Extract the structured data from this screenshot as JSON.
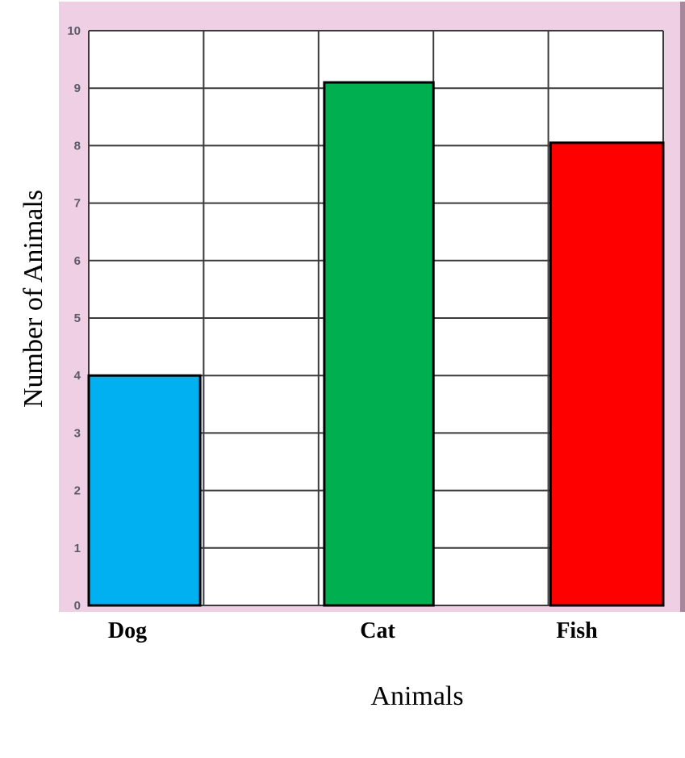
{
  "chart_data": {
    "type": "bar",
    "title": "",
    "xlabel": "Animals",
    "ylabel": "Number of Animals",
    "categories": [
      "Dog",
      "Cat",
      "Fish"
    ],
    "values": [
      4,
      9.1,
      8.05
    ],
    "ylim": [
      0,
      10
    ],
    "yticks": [
      "0",
      "1",
      "2",
      "3",
      "4",
      "5",
      "6",
      "7",
      "8",
      "9",
      "10"
    ],
    "grid": true,
    "colors": [
      "#00b0f0",
      "#00b050",
      "#ff0000"
    ],
    "panel_color": "#efcfe3",
    "grid_color": "#3a3a3a"
  }
}
